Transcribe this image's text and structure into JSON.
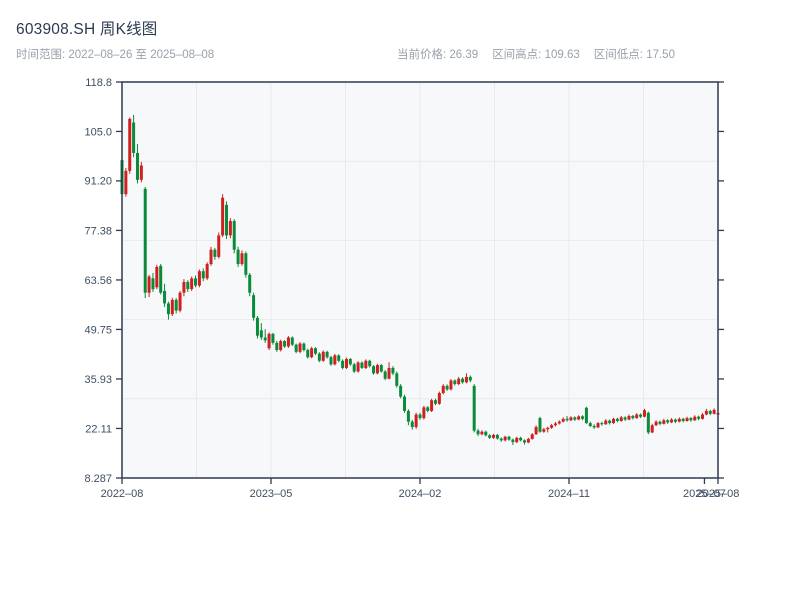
{
  "header": {
    "title": "603908.SH 周K线图",
    "time_range": "时间范围: 2022–08–26 至 2025–08–08",
    "stats": [
      {
        "label": "当前价格:",
        "value": "26.39"
      },
      {
        "label": "区间高点:",
        "value": "109.63"
      },
      {
        "label": "区间低点:",
        "value": "17.50"
      }
    ]
  },
  "chart_data": {
    "type": "candlestick",
    "title": "603908.SH 周K线图",
    "frequency": "weekly",
    "start_date": "2022-08-26",
    "end_date": "2025-08-08",
    "current_price": 26.39,
    "range_high": 109.63,
    "range_low": 17.5,
    "grid": true,
    "color_convention": "red = up week, green = down week",
    "ylim": [
      8.287,
      118.8
    ],
    "y_ticks": [
      {
        "value": 118.8,
        "label": "118.8"
      },
      {
        "value": 105.0,
        "label": "105.0"
      },
      {
        "value": 91.2,
        "label": "91.20"
      },
      {
        "value": 77.38,
        "label": "77.38"
      },
      {
        "value": 63.56,
        "label": "63.56"
      },
      {
        "value": 49.75,
        "label": "49.75"
      },
      {
        "value": 35.93,
        "label": "35.93"
      },
      {
        "value": 22.11,
        "label": "22.11"
      },
      {
        "value": 8.287,
        "label": "8.287"
      }
    ],
    "x_ticks": [
      {
        "index": 0,
        "label": "2022–08"
      },
      {
        "index": 38.5,
        "label": "2023–05"
      },
      {
        "index": 77,
        "label": "2024–02"
      },
      {
        "index": 115.5,
        "label": "2024–11"
      },
      {
        "index": 150.5,
        "label": "2025–07"
      },
      {
        "index": 154,
        "label": "2025–08"
      }
    ],
    "colors": {
      "up": "#cf1f1f",
      "down": "#0a8b39",
      "spine": "#2d3a4f",
      "grid": "#e7eaee",
      "plot_bg": "#f7f8fa",
      "tick_label": "#3f4e63",
      "title": "#2b3a50",
      "subtitle": "#98a1ac"
    },
    "series_format": [
      "open",
      "high",
      "low",
      "close"
    ],
    "series": [
      [
        97.0,
        98.5,
        86.5,
        87.5
      ],
      [
        87.5,
        94.8,
        86.8,
        94.0
      ],
      [
        94.0,
        108.9,
        93.2,
        108.5
      ],
      [
        107.5,
        109.63,
        97.8,
        99.0
      ],
      [
        99.0,
        101.5,
        90.5,
        91.5
      ],
      [
        91.5,
        96.5,
        90.8,
        95.5
      ],
      [
        89.0,
        89.5,
        58.5,
        60.0
      ],
      [
        60.0,
        65.0,
        58.8,
        64.5
      ],
      [
        64.0,
        65.5,
        60.2,
        61.0
      ],
      [
        61.5,
        67.8,
        61.0,
        67.2
      ],
      [
        67.5,
        68.0,
        59.5,
        60.0
      ],
      [
        60.5,
        62.5,
        56.0,
        57.0
      ],
      [
        57.0,
        57.5,
        52.5,
        54.0
      ],
      [
        54.0,
        58.6,
        53.5,
        58.0
      ],
      [
        58.0,
        58.5,
        54.2,
        55.0
      ],
      [
        55.0,
        60.5,
        54.5,
        60.0
      ],
      [
        60.0,
        63.8,
        59.0,
        63.0
      ],
      [
        63.0,
        63.5,
        60.2,
        61.0
      ],
      [
        61.0,
        64.5,
        60.5,
        64.0
      ],
      [
        64.0,
        64.8,
        61.5,
        62.0
      ],
      [
        62.0,
        66.5,
        61.5,
        66.0
      ],
      [
        66.0,
        66.8,
        63.2,
        64.0
      ],
      [
        64.0,
        68.5,
        63.5,
        68.0
      ],
      [
        68.0,
        72.8,
        67.5,
        72.0
      ],
      [
        72.0,
        72.5,
        69.2,
        70.0
      ],
      [
        70.0,
        76.8,
        69.5,
        76.0
      ],
      [
        76.0,
        87.5,
        75.5,
        86.5
      ],
      [
        84.5,
        85.5,
        75.0,
        76.0
      ],
      [
        76.0,
        80.8,
        75.2,
        80.0
      ],
      [
        80.0,
        80.5,
        71.0,
        72.0
      ],
      [
        72.0,
        72.8,
        67.2,
        68.0
      ],
      [
        68.0,
        71.8,
        67.5,
        71.0
      ],
      [
        71.0,
        71.5,
        64.2,
        65.0
      ],
      [
        65.0,
        65.5,
        59.0,
        60.0
      ],
      [
        59.3,
        60.0,
        52.2,
        53.0
      ],
      [
        53.0,
        53.5,
        47.2,
        48.0
      ],
      [
        49.5,
        51.5,
        46.8,
        47.5
      ],
      [
        47.5,
        49.8,
        46.0,
        46.7
      ],
      [
        44.5,
        48.9,
        44.0,
        48.5
      ],
      [
        48.5,
        48.8,
        45.5,
        46.0
      ],
      [
        46.0,
        46.5,
        43.5,
        44.0
      ],
      [
        44.0,
        46.9,
        43.6,
        46.5
      ],
      [
        46.5,
        46.8,
        44.6,
        45.0
      ],
      [
        45.0,
        47.9,
        44.6,
        47.5
      ],
      [
        47.5,
        47.8,
        45.1,
        45.5
      ],
      [
        45.5,
        45.8,
        43.1,
        43.5
      ],
      [
        43.5,
        46.2,
        43.1,
        45.8
      ],
      [
        45.8,
        46.1,
        43.6,
        44.0
      ],
      [
        44.0,
        44.4,
        41.6,
        42.0
      ],
      [
        42.0,
        44.9,
        41.7,
        44.5
      ],
      [
        44.5,
        44.8,
        42.6,
        43.0
      ],
      [
        43.0,
        43.4,
        40.6,
        41.0
      ],
      [
        41.0,
        43.9,
        40.7,
        43.5
      ],
      [
        43.5,
        43.8,
        41.6,
        42.0
      ],
      [
        42.0,
        42.4,
        39.6,
        40.0
      ],
      [
        40.0,
        42.9,
        39.7,
        42.5
      ],
      [
        42.5,
        42.8,
        40.6,
        41.0
      ],
      [
        41.0,
        41.4,
        38.6,
        39.0
      ],
      [
        39.0,
        41.9,
        38.7,
        41.5
      ],
      [
        41.5,
        41.8,
        39.6,
        40.0
      ],
      [
        40.0,
        40.4,
        37.6,
        38.0
      ],
      [
        38.0,
        40.9,
        37.7,
        40.5
      ],
      [
        40.5,
        40.8,
        38.7,
        39.0
      ],
      [
        39.0,
        41.4,
        38.7,
        41.0
      ],
      [
        41.0,
        41.3,
        39.1,
        39.5
      ],
      [
        39.5,
        39.8,
        37.1,
        37.5
      ],
      [
        37.5,
        40.2,
        37.2,
        39.8
      ],
      [
        39.8,
        40.1,
        37.7,
        38.0
      ],
      [
        38.0,
        38.4,
        35.6,
        36.0
      ],
      [
        36.0,
        40.6,
        35.8,
        39.0
      ],
      [
        39.0,
        39.5,
        37.0,
        37.5
      ],
      [
        37.5,
        38.0,
        33.5,
        34.0
      ],
      [
        34.0,
        34.5,
        30.5,
        31.0
      ],
      [
        31.0,
        31.5,
        26.5,
        27.0
      ],
      [
        27.0,
        27.5,
        23.0,
        24.0
      ],
      [
        24.0,
        24.5,
        21.8,
        22.5
      ],
      [
        22.5,
        26.5,
        22.0,
        26.0
      ],
      [
        26.0,
        26.5,
        24.5,
        25.0
      ],
      [
        25.0,
        28.4,
        24.6,
        28.0
      ],
      [
        28.0,
        28.4,
        26.6,
        27.0
      ],
      [
        27.0,
        30.4,
        26.7,
        30.0
      ],
      [
        30.0,
        30.4,
        28.6,
        29.0
      ],
      [
        29.0,
        32.4,
        28.7,
        32.0
      ],
      [
        32.0,
        34.5,
        31.6,
        34.0
      ],
      [
        34.0,
        34.4,
        32.6,
        33.0
      ],
      [
        33.0,
        35.9,
        32.7,
        35.5
      ],
      [
        35.5,
        35.8,
        34.1,
        34.5
      ],
      [
        34.5,
        36.5,
        34.2,
        36.0
      ],
      [
        36.0,
        36.4,
        34.6,
        35.0
      ],
      [
        35.0,
        37.5,
        34.7,
        36.5
      ],
      [
        36.5,
        36.9,
        35.0,
        35.5
      ],
      [
        34.0,
        34.5,
        21.0,
        21.5
      ],
      [
        21.5,
        22.0,
        20.0,
        20.5
      ],
      [
        20.5,
        21.6,
        20.2,
        21.2
      ],
      [
        21.2,
        21.5,
        19.9,
        20.2
      ],
      [
        20.2,
        20.5,
        19.2,
        19.5
      ],
      [
        19.5,
        20.6,
        19.2,
        20.3
      ],
      [
        20.3,
        20.6,
        19.0,
        19.3
      ],
      [
        19.3,
        19.6,
        18.4,
        18.8
      ],
      [
        18.8,
        20.1,
        18.5,
        19.8
      ],
      [
        19.8,
        20.1,
        18.7,
        19.0
      ],
      [
        19.0,
        19.3,
        17.5,
        18.3
      ],
      [
        18.3,
        19.8,
        18.0,
        19.5
      ],
      [
        19.5,
        19.8,
        18.5,
        18.8
      ],
      [
        18.8,
        19.1,
        17.6,
        18.2
      ],
      [
        18.2,
        19.5,
        18.0,
        19.2
      ],
      [
        19.2,
        20.8,
        19.0,
        20.5
      ],
      [
        20.5,
        23.0,
        20.3,
        22.5
      ],
      [
        25.0,
        25.4,
        20.9,
        21.2
      ],
      [
        21.2,
        22.3,
        20.9,
        21.9
      ],
      [
        21.9,
        22.6,
        21.0,
        22.3
      ],
      [
        22.3,
        23.4,
        22.0,
        23.0
      ],
      [
        23.0,
        23.9,
        22.7,
        23.5
      ],
      [
        23.5,
        24.4,
        23.2,
        24.0
      ],
      [
        24.0,
        25.2,
        23.8,
        24.8
      ],
      [
        24.8,
        25.6,
        24.0,
        24.4
      ],
      [
        24.4,
        25.5,
        24.2,
        25.2
      ],
      [
        25.2,
        25.5,
        24.2,
        24.6
      ],
      [
        24.6,
        25.8,
        24.4,
        25.5
      ],
      [
        25.5,
        25.8,
        24.4,
        24.8
      ],
      [
        27.9,
        28.15,
        23.4,
        23.6
      ],
      [
        23.6,
        24.0,
        22.5,
        22.8
      ],
      [
        22.8,
        23.3,
        22.0,
        22.4
      ],
      [
        22.4,
        23.9,
        22.2,
        23.6
      ],
      [
        23.6,
        24.0,
        22.9,
        23.3
      ],
      [
        23.3,
        24.7,
        23.1,
        24.3
      ],
      [
        24.3,
        24.6,
        23.2,
        23.6
      ],
      [
        23.6,
        25.1,
        23.4,
        24.8
      ],
      [
        24.8,
        25.1,
        23.8,
        24.2
      ],
      [
        24.2,
        25.6,
        24.0,
        25.2
      ],
      [
        25.2,
        25.5,
        24.2,
        24.6
      ],
      [
        24.6,
        26.0,
        24.4,
        25.6
      ],
      [
        25.6,
        25.9,
        24.6,
        25.0
      ],
      [
        25.0,
        26.4,
        24.8,
        26.0
      ],
      [
        26.0,
        26.3,
        25.0,
        25.4
      ],
      [
        25.4,
        27.6,
        25.2,
        27.2
      ],
      [
        26.5,
        26.8,
        20.5,
        21.0
      ],
      [
        21.0,
        23.4,
        20.8,
        23.0
      ],
      [
        23.0,
        24.4,
        22.8,
        24.0
      ],
      [
        24.0,
        24.3,
        23.0,
        23.4
      ],
      [
        23.4,
        24.8,
        23.2,
        24.4
      ],
      [
        24.4,
        24.7,
        23.4,
        23.8
      ],
      [
        23.8,
        25.0,
        23.6,
        24.6
      ],
      [
        24.6,
        24.9,
        23.6,
        24.0
      ],
      [
        24.0,
        25.2,
        23.8,
        24.8
      ],
      [
        24.8,
        25.1,
        23.8,
        24.2
      ],
      [
        24.2,
        25.4,
        24.0,
        25.0
      ],
      [
        25.0,
        25.3,
        24.0,
        24.4
      ],
      [
        24.4,
        25.8,
        24.2,
        25.4
      ],
      [
        25.4,
        25.7,
        24.4,
        24.8
      ],
      [
        24.8,
        26.4,
        24.6,
        26.0
      ],
      [
        26.0,
        27.6,
        25.8,
        27.0
      ],
      [
        27.0,
        27.3,
        25.8,
        26.2
      ],
      [
        26.2,
        27.7,
        26.0,
        27.3
      ],
      [
        26.0,
        26.8,
        25.6,
        26.39
      ]
    ]
  }
}
